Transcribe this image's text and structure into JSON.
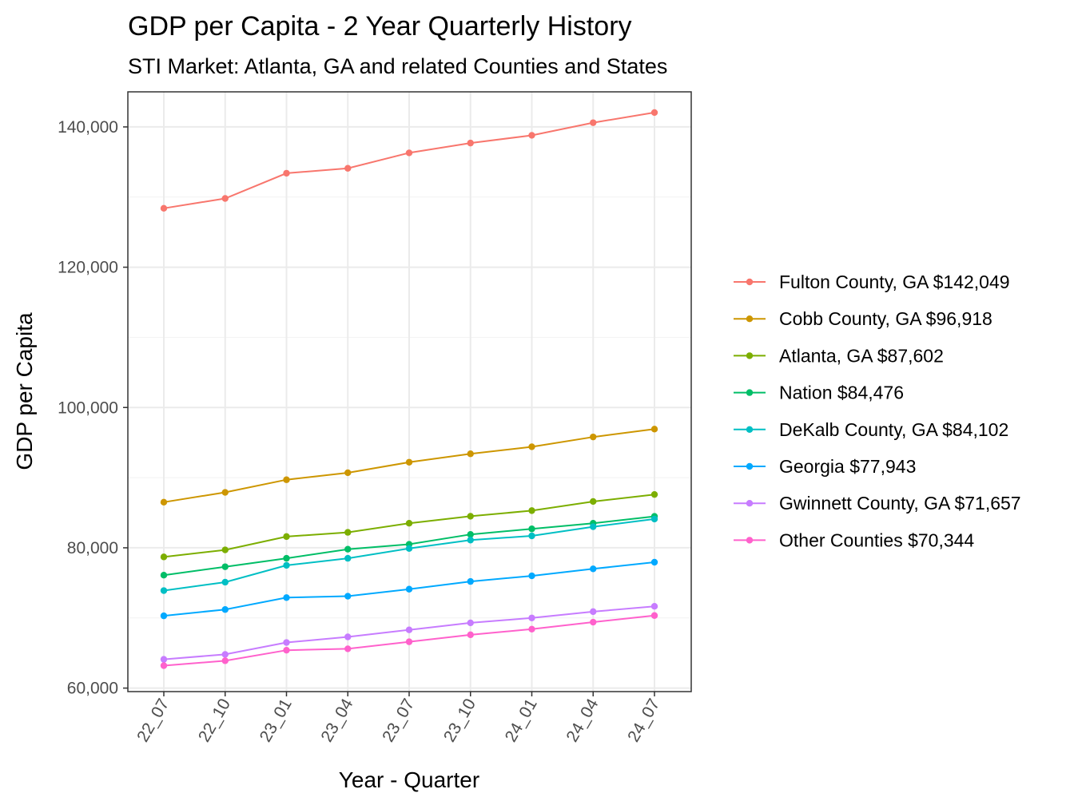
{
  "chart_data": {
    "type": "line",
    "title": "GDP per Capita - 2 Year Quarterly History",
    "subtitle": "STI Market: Atlanta, GA and related Counties and States",
    "xlabel": "Year - Quarter",
    "ylabel": "GDP per Capita",
    "categories": [
      "22_07",
      "22_10",
      "23_01",
      "23_04",
      "23_07",
      "23_10",
      "24_01",
      "24_04",
      "24_07"
    ],
    "ylim": [
      59500,
      145000
    ],
    "yticks": [
      60000,
      80000,
      100000,
      120000,
      140000
    ],
    "ytick_labels": [
      "60,000",
      "80,000",
      "100,000",
      "120,000",
      "140,000"
    ],
    "grid": true,
    "legend_position": "right",
    "series": [
      {
        "name": "Fulton County, GA $142,049",
        "color": "#F8766D",
        "values": [
          128400,
          129800,
          133400,
          134100,
          136300,
          137700,
          138800,
          140600,
          142049
        ]
      },
      {
        "name": "Cobb County, GA $96,918",
        "color": "#CD9600",
        "values": [
          86500,
          87900,
          89700,
          90700,
          92200,
          93400,
          94400,
          95800,
          96918
        ]
      },
      {
        "name": "Atlanta, GA $87,602",
        "color": "#7CAE00",
        "values": [
          78700,
          79700,
          81600,
          82200,
          83500,
          84500,
          85300,
          86600,
          87602
        ]
      },
      {
        "name": "Nation $84,476",
        "color": "#00BE67",
        "values": [
          76100,
          77300,
          78500,
          79800,
          80500,
          81900,
          82700,
          83500,
          84476
        ]
      },
      {
        "name": "DeKalb County, GA $84,102",
        "color": "#00BFC4",
        "values": [
          73900,
          75100,
          77500,
          78500,
          79900,
          81100,
          81700,
          83000,
          84102
        ]
      },
      {
        "name": "Georgia $77,943",
        "color": "#00A9FF",
        "values": [
          70300,
          71200,
          72900,
          73100,
          74100,
          75200,
          76000,
          77000,
          77943
        ]
      },
      {
        "name": "Gwinnett County, GA $71,657",
        "color": "#C77CFF",
        "values": [
          64100,
          64800,
          66500,
          67300,
          68300,
          69300,
          70000,
          70900,
          71657
        ]
      },
      {
        "name": "Other Counties $70,344",
        "color": "#FF61CC",
        "values": [
          63200,
          63900,
          65400,
          65600,
          66600,
          67600,
          68400,
          69400,
          70344
        ]
      }
    ]
  }
}
